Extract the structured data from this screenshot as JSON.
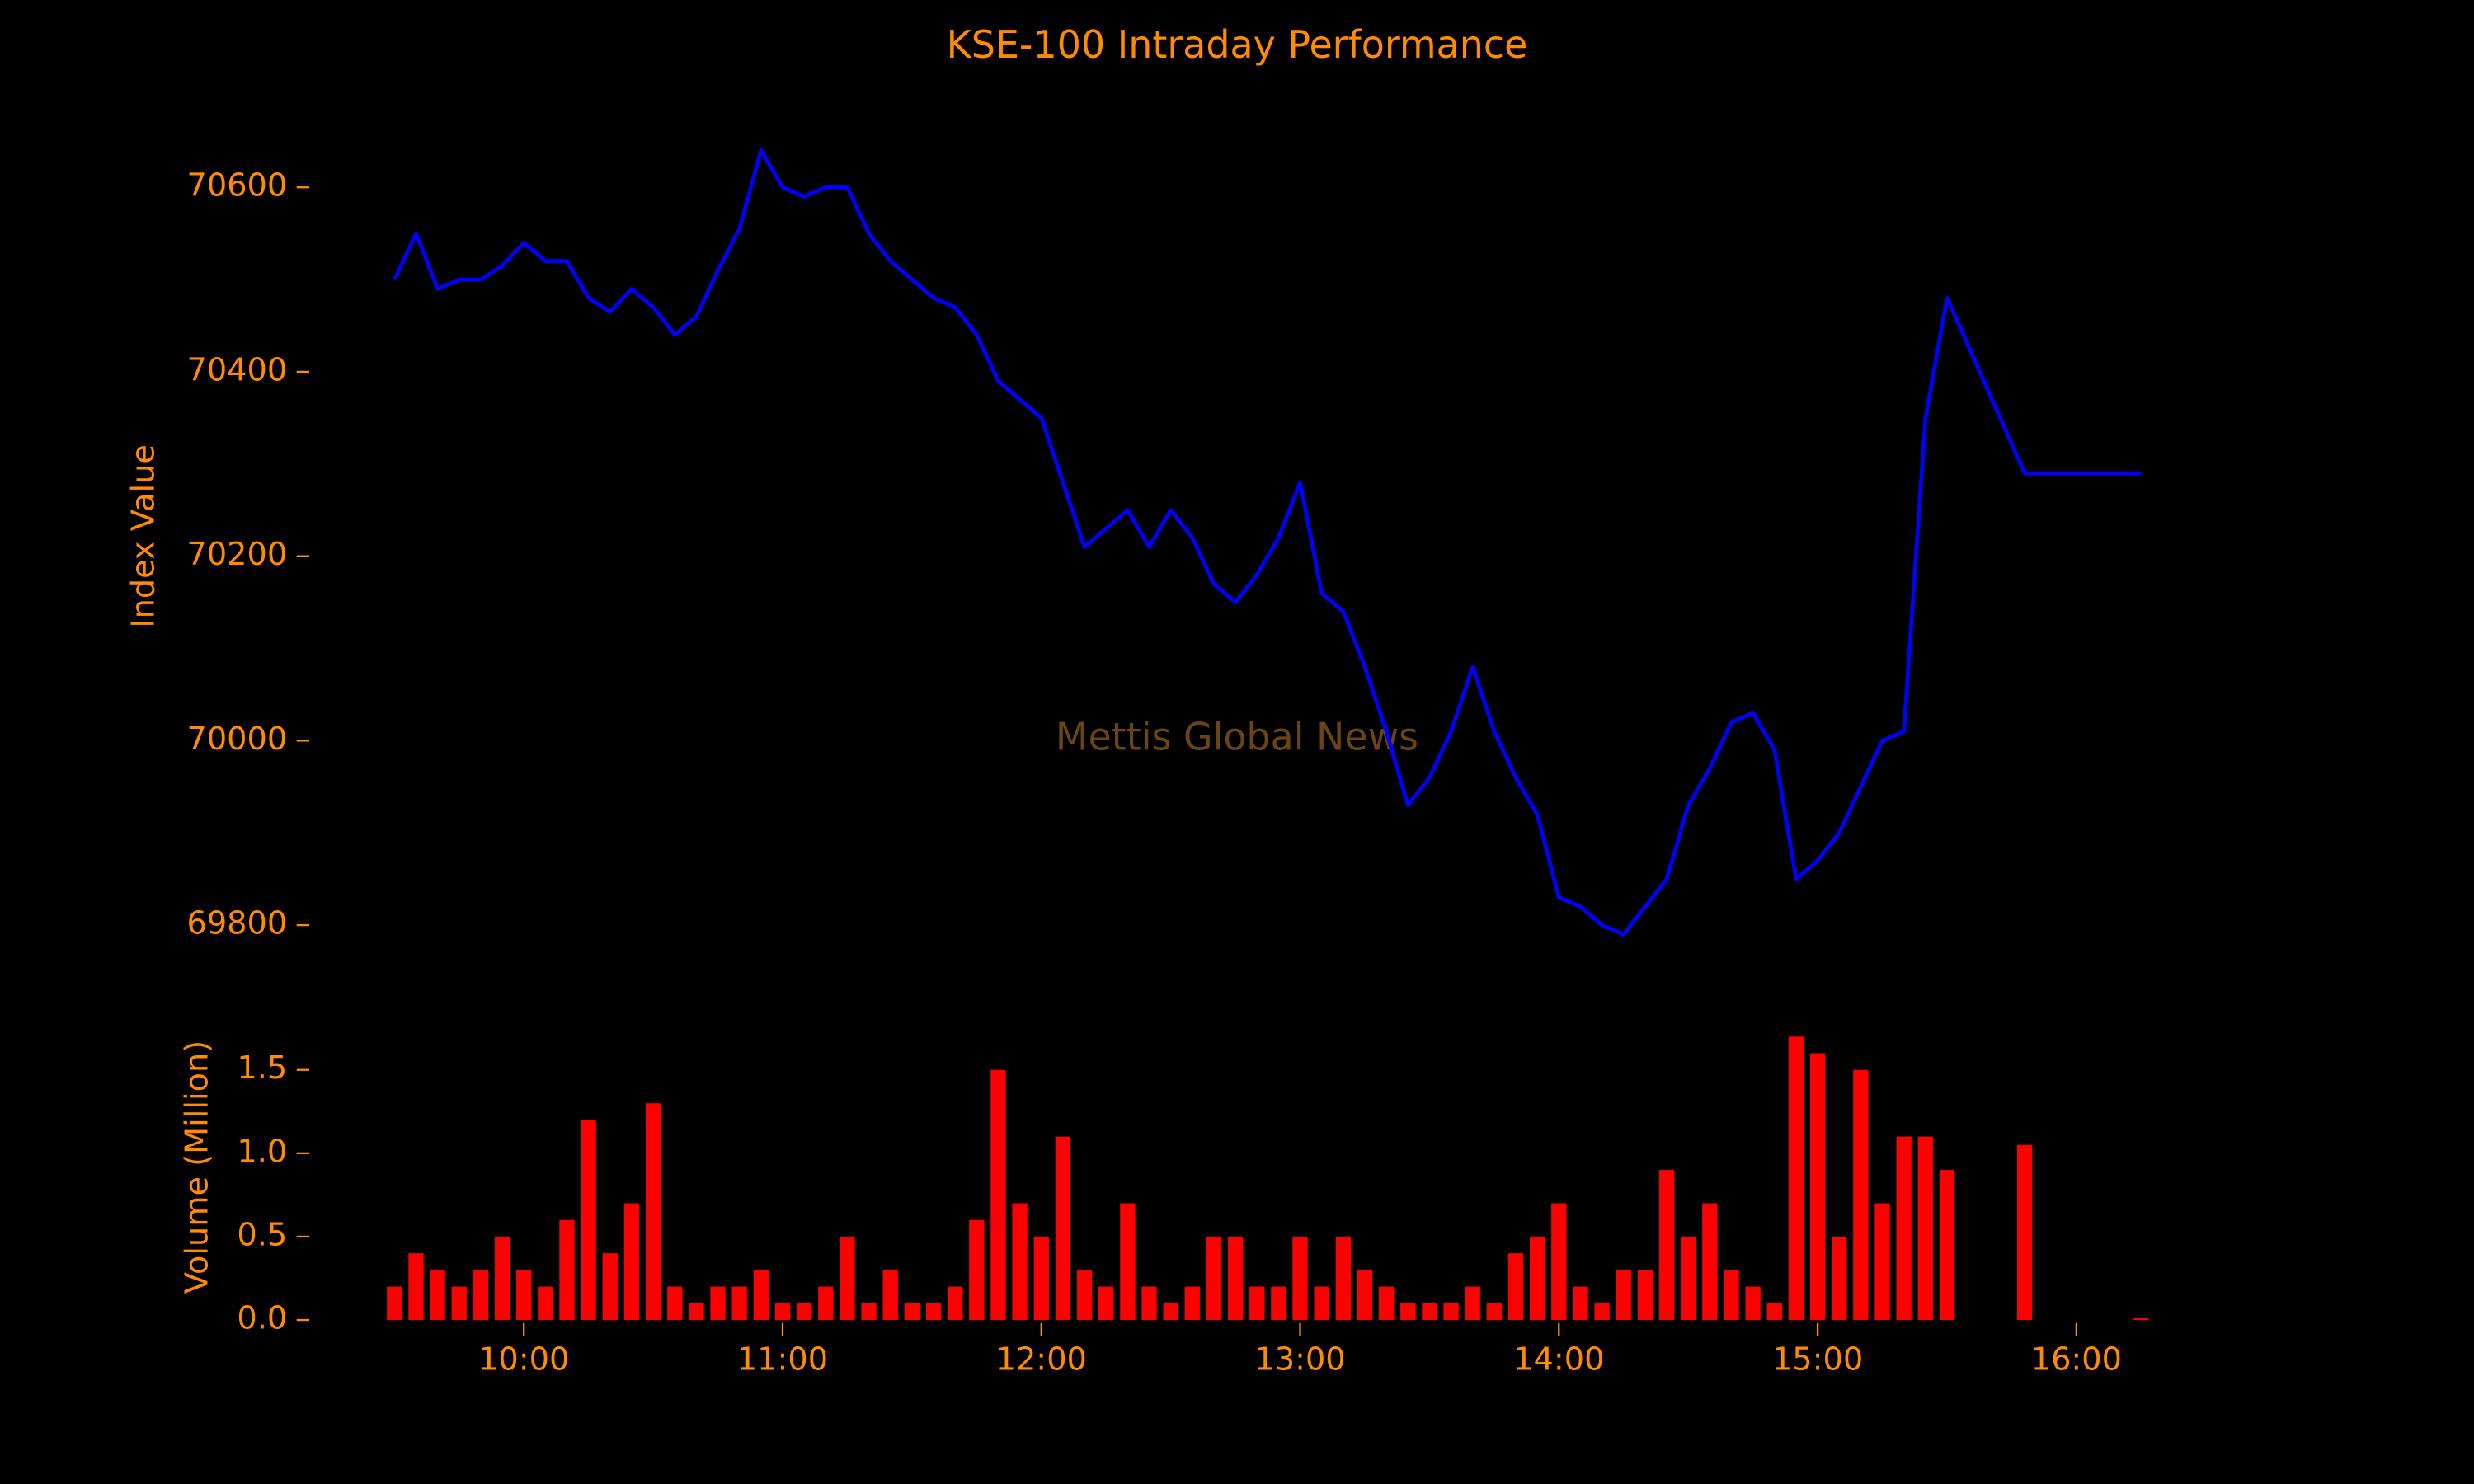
{
  "chart_data": [
    {
      "type": "line",
      "title": "KSE-100 Intraday Performance",
      "y_label": "Index Value",
      "annotation": "Mettis Global News",
      "color": "#0000ff",
      "x": [
        "09:30",
        "09:35",
        "09:40",
        "09:45",
        "09:50",
        "09:55",
        "10:00",
        "10:05",
        "10:10",
        "10:15",
        "10:20",
        "10:25",
        "10:30",
        "10:35",
        "10:40",
        "10:45",
        "10:50",
        "10:55",
        "11:00",
        "11:05",
        "11:10",
        "11:15",
        "11:20",
        "11:25",
        "11:30",
        "11:35",
        "11:40",
        "11:45",
        "11:50",
        "11:55",
        "12:00",
        "12:05",
        "12:10",
        "12:15",
        "12:20",
        "12:25",
        "12:30",
        "12:35",
        "12:40",
        "12:45",
        "12:50",
        "12:55",
        "13:00",
        "13:05",
        "13:10",
        "13:15",
        "13:20",
        "13:25",
        "13:30",
        "13:35",
        "13:40",
        "13:45",
        "13:50",
        "13:55",
        "14:00",
        "14:05",
        "14:10",
        "14:15",
        "14:20",
        "14:25",
        "14:30",
        "14:35",
        "14:40",
        "14:45",
        "14:50",
        "14:55",
        "15:00",
        "15:05",
        "15:10",
        "15:15",
        "15:20",
        "15:25",
        "15:30",
        "15:48",
        "16:15"
      ],
      "values": [
        70500,
        70550,
        70490,
        70500,
        70500,
        70515,
        70540,
        70520,
        70520,
        70480,
        70465,
        70490,
        70470,
        70440,
        70460,
        70510,
        70555,
        70640,
        70600,
        70590,
        70600,
        70600,
        70550,
        70520,
        70500,
        70480,
        70470,
        70440,
        70390,
        70370,
        70350,
        70280,
        70210,
        70230,
        70250,
        70210,
        70250,
        70220,
        70170,
        70150,
        70180,
        70220,
        70280,
        70160,
        70140,
        70080,
        70010,
        69930,
        69960,
        70010,
        70080,
        70010,
        69960,
        69920,
        69830,
        69820,
        69800,
        69790,
        69820,
        69850,
        69930,
        69970,
        70020,
        70030,
        69990,
        69850,
        69870,
        69900,
        69950,
        70000,
        70010,
        70350,
        70480,
        70290,
        70290
      ],
      "xlim": [
        "09:30",
        "16:15"
      ],
      "ylim": [
        69760,
        70680
      ],
      "yticks": [
        69800,
        70000,
        70200,
        70400,
        70600
      ]
    },
    {
      "type": "bar",
      "y_label": "Volume (Million)",
      "color": "#ff0000",
      "x": [
        "09:30",
        "09:35",
        "09:40",
        "09:45",
        "09:50",
        "09:55",
        "10:00",
        "10:05",
        "10:10",
        "10:15",
        "10:20",
        "10:25",
        "10:30",
        "10:35",
        "10:40",
        "10:45",
        "10:50",
        "10:55",
        "11:00",
        "11:05",
        "11:10",
        "11:15",
        "11:20",
        "11:25",
        "11:30",
        "11:35",
        "11:40",
        "11:45",
        "11:50",
        "11:55",
        "12:00",
        "12:05",
        "12:10",
        "12:15",
        "12:20",
        "12:25",
        "12:30",
        "12:35",
        "12:40",
        "12:45",
        "12:50",
        "12:55",
        "13:00",
        "13:05",
        "13:10",
        "13:15",
        "13:20",
        "13:25",
        "13:30",
        "13:35",
        "13:40",
        "13:45",
        "13:50",
        "13:55",
        "14:00",
        "14:05",
        "14:10",
        "14:15",
        "14:20",
        "14:25",
        "14:30",
        "14:35",
        "14:40",
        "14:45",
        "14:50",
        "14:55",
        "15:00",
        "15:05",
        "15:10",
        "15:15",
        "15:20",
        "15:25",
        "15:30",
        "15:48",
        "16:15"
      ],
      "values": [
        0.2,
        0.4,
        0.3,
        0.2,
        0.3,
        0.5,
        0.3,
        0.2,
        0.6,
        1.2,
        0.4,
        0.7,
        1.3,
        0.2,
        0.1,
        0.2,
        0.2,
        0.3,
        0.1,
        0.1,
        0.2,
        0.5,
        0.1,
        0.3,
        0.1,
        0.1,
        0.2,
        0.6,
        1.5,
        0.7,
        0.5,
        1.1,
        0.3,
        0.2,
        0.7,
        0.2,
        0.1,
        0.2,
        0.5,
        0.5,
        0.2,
        0.2,
        0.5,
        0.2,
        0.5,
        0.3,
        0.2,
        0.1,
        0.1,
        0.1,
        0.2,
        0.1,
        0.4,
        0.5,
        0.7,
        0.2,
        0.1,
        0.3,
        0.3,
        0.9,
        0.5,
        0.7,
        0.3,
        0.2,
        0.1,
        1.7,
        1.6,
        0.5,
        1.5,
        0.7,
        1.1,
        1.1,
        0.9,
        1.05,
        0.01
      ],
      "xlim": [
        "09:30",
        "16:15"
      ],
      "ylim": [
        0,
        1.75
      ],
      "yticks": [
        0.0,
        0.5,
        1.0,
        1.5
      ],
      "xticks": [
        "10:00",
        "11:00",
        "12:00",
        "13:00",
        "14:00",
        "15:00",
        "16:00"
      ]
    }
  ]
}
